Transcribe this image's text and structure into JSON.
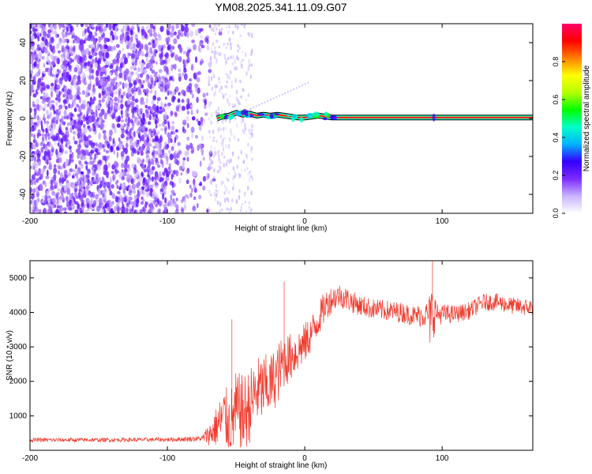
{
  "title": "YM08.2025.341.11.09.G07",
  "chart_data": [
    {
      "type": "heatmap",
      "name": "spectrogram",
      "xlabel": "Height of straight line (km)",
      "ylabel": "Frequency (Hz)",
      "xlim": [
        -200,
        166
      ],
      "ylim": [
        -50,
        50
      ],
      "xticks": [
        -200,
        -100,
        0,
        100
      ],
      "yticks": [
        -40,
        -20,
        0,
        20,
        40
      ],
      "noise_region_x": [
        -200,
        -60
      ],
      "sparse_noise_x": [
        -70,
        -38
      ],
      "ridge": {
        "x": [
          -64,
          -60,
          -55,
          -50,
          -45,
          -40,
          -35,
          -30,
          -25,
          -20,
          -15,
          -10,
          -5,
          0,
          5,
          10,
          15,
          20,
          25,
          30,
          40,
          60,
          80,
          100,
          120,
          140,
          166
        ],
        "freq": [
          0,
          1,
          1.5,
          3,
          2,
          2.5,
          1.5,
          2,
          1.5,
          2,
          1.5,
          1,
          0.5,
          0.5,
          1,
          1.5,
          1,
          0.5,
          0.5,
          0.5,
          0.5,
          0.5,
          0.5,
          0.5,
          0.5,
          0.5,
          0.5
        ]
      },
      "colorbar": {
        "label": "Normalized spectral amplitude",
        "range": [
          0,
          1
        ],
        "ticks": [
          "0.0",
          "0.2",
          "0.4",
          "0.6",
          "0.8"
        ],
        "colors": [
          "#ffffff",
          "#c9b3ff",
          "#7b2cff",
          "#3300ff",
          "#00b4ff",
          "#00ffc8",
          "#00ff00",
          "#b4ff00",
          "#ffff00",
          "#ff8000",
          "#ff0000",
          "#ff0066"
        ]
      }
    },
    {
      "type": "line",
      "name": "snr",
      "xlabel": "Height of straight line (km)",
      "ylabel": "SNR (10 * v/v)",
      "xlim": [
        -200,
        166
      ],
      "ylim": [
        0,
        5500
      ],
      "xticks": [
        -200,
        -100,
        0,
        100
      ],
      "yticks": [
        1000,
        2000,
        3000,
        4000,
        5000
      ],
      "color": "#ef3b2c",
      "envelope": {
        "x": [
          -200,
          -150,
          -100,
          -75,
          -68,
          -62,
          -58,
          -55,
          -50,
          -45,
          -40,
          -35,
          -30,
          -25,
          -20,
          -15,
          -10,
          -5,
          0,
          5,
          10,
          15,
          20,
          25,
          30,
          40,
          50,
          60,
          70,
          80,
          90,
          92,
          94,
          96,
          100,
          110,
          120,
          130,
          140,
          150,
          160,
          166
        ],
        "mean": [
          300,
          300,
          310,
          340,
          500,
          800,
          1000,
          700,
          1100,
          1000,
          1300,
          1700,
          1800,
          1900,
          2200,
          2600,
          2700,
          2900,
          3100,
          3400,
          3800,
          4200,
          4400,
          4500,
          4400,
          4200,
          4100,
          4050,
          4000,
          3900,
          3950,
          3700,
          4100,
          3950,
          3950,
          3950,
          4050,
          4300,
          4300,
          4200,
          4150,
          4150
        ],
        "amp": [
          60,
          60,
          60,
          80,
          400,
          700,
          900,
          1000,
          1200,
          1200,
          1100,
          1000,
          1000,
          900,
          900,
          800,
          700,
          650,
          600,
          550,
          500,
          450,
          400,
          350,
          350,
          300,
          300,
          300,
          300,
          300,
          400,
          1200,
          800,
          300,
          300,
          250,
          250,
          250,
          250,
          250,
          250,
          250
        ]
      },
      "spikes": [
        {
          "x": -53,
          "y": 3800
        },
        {
          "x": -15,
          "y": 4900
        },
        {
          "x": 93,
          "y": 5500
        }
      ]
    }
  ]
}
